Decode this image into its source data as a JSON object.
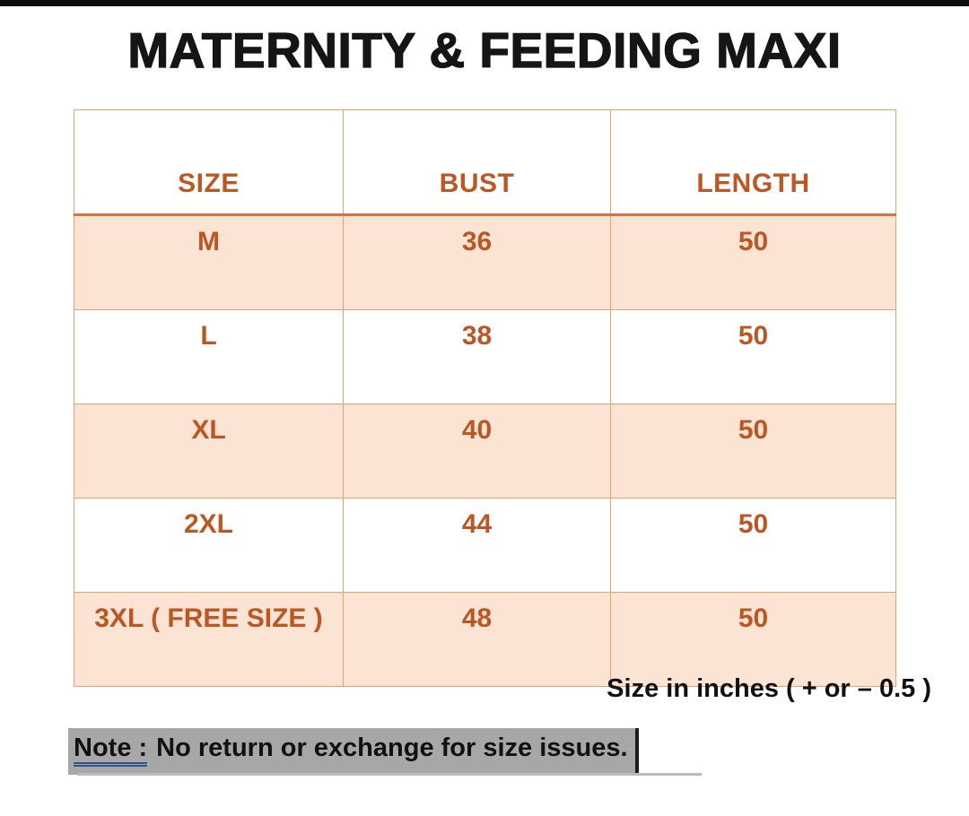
{
  "title": "MATERNITY & FEEDING MAXI",
  "size_table": {
    "headers": [
      "SIZE",
      "BUST",
      "LENGTH"
    ],
    "rows": [
      [
        "M",
        "36",
        "50"
      ],
      [
        "L",
        "38",
        "50"
      ],
      [
        "XL",
        "40",
        "50"
      ],
      [
        "2XL",
        "44",
        "50"
      ],
      [
        "3XL ( FREE SIZE )",
        "48",
        "50"
      ]
    ]
  },
  "footnote": "Size in inches ( + or  – 0.5 )",
  "note": {
    "label": "Note :",
    "text": "No return or exchange for size issues."
  },
  "colors": {
    "accent_text": "#bc5724",
    "row_highlight": "#fce4d4",
    "table_border": "#e8a173",
    "header_divider": "#d77341",
    "note_highlight": "#a7a7a7",
    "note_underline": "#2f5496",
    "top_bar": "#0b0b0b"
  }
}
